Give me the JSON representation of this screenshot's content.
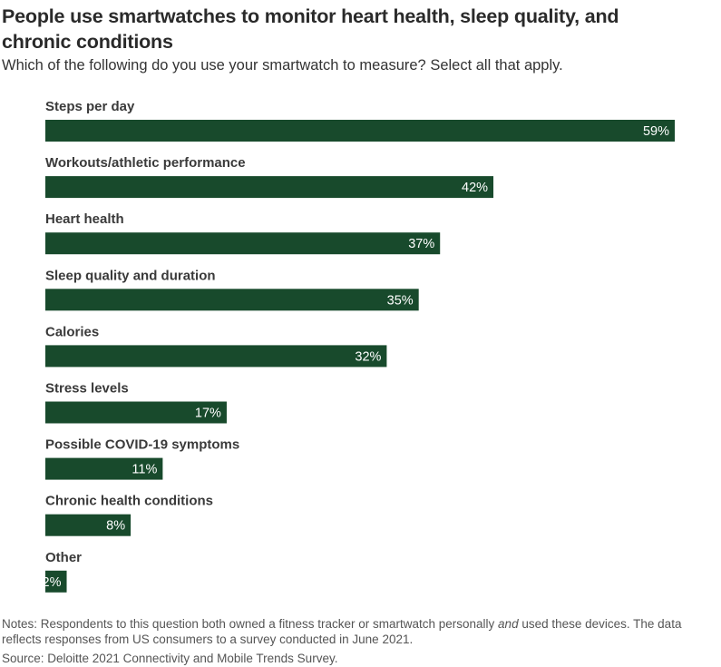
{
  "header": {
    "title": "People use smartwatches to monitor heart health, sleep quality, and chronic conditions",
    "subtitle": "Which of the following do you use your smartwatch to measure? Select all that apply."
  },
  "footer": {
    "notes_pre": "Notes: Respondents to this question both owned a fitness tracker or smartwatch personally ",
    "notes_em": "and",
    "notes_post": " used these devices. The data reflects responses from US consumers to a survey conducted in June 2021.",
    "source": "Source: Deloitte 2021 Connectivity and Mobile Trends Survey."
  },
  "colors": {
    "bar": "#184a2c",
    "bar_label": "#ffffff",
    "category_label": "#3a3a3a"
  },
  "chart_data": {
    "type": "bar",
    "orientation": "horizontal",
    "categories": [
      "Steps per day",
      "Workouts/athletic performance",
      "Heart health",
      "Sleep quality and duration",
      "Calories",
      "Stress levels",
      "Possible COVID-19 symptoms",
      "Chronic health conditions",
      "Other"
    ],
    "values": [
      59,
      42,
      37,
      35,
      32,
      17,
      11,
      8,
      2
    ],
    "value_suffix": "%",
    "xlim": [
      0,
      59
    ],
    "grid": false,
    "legend": "none"
  }
}
